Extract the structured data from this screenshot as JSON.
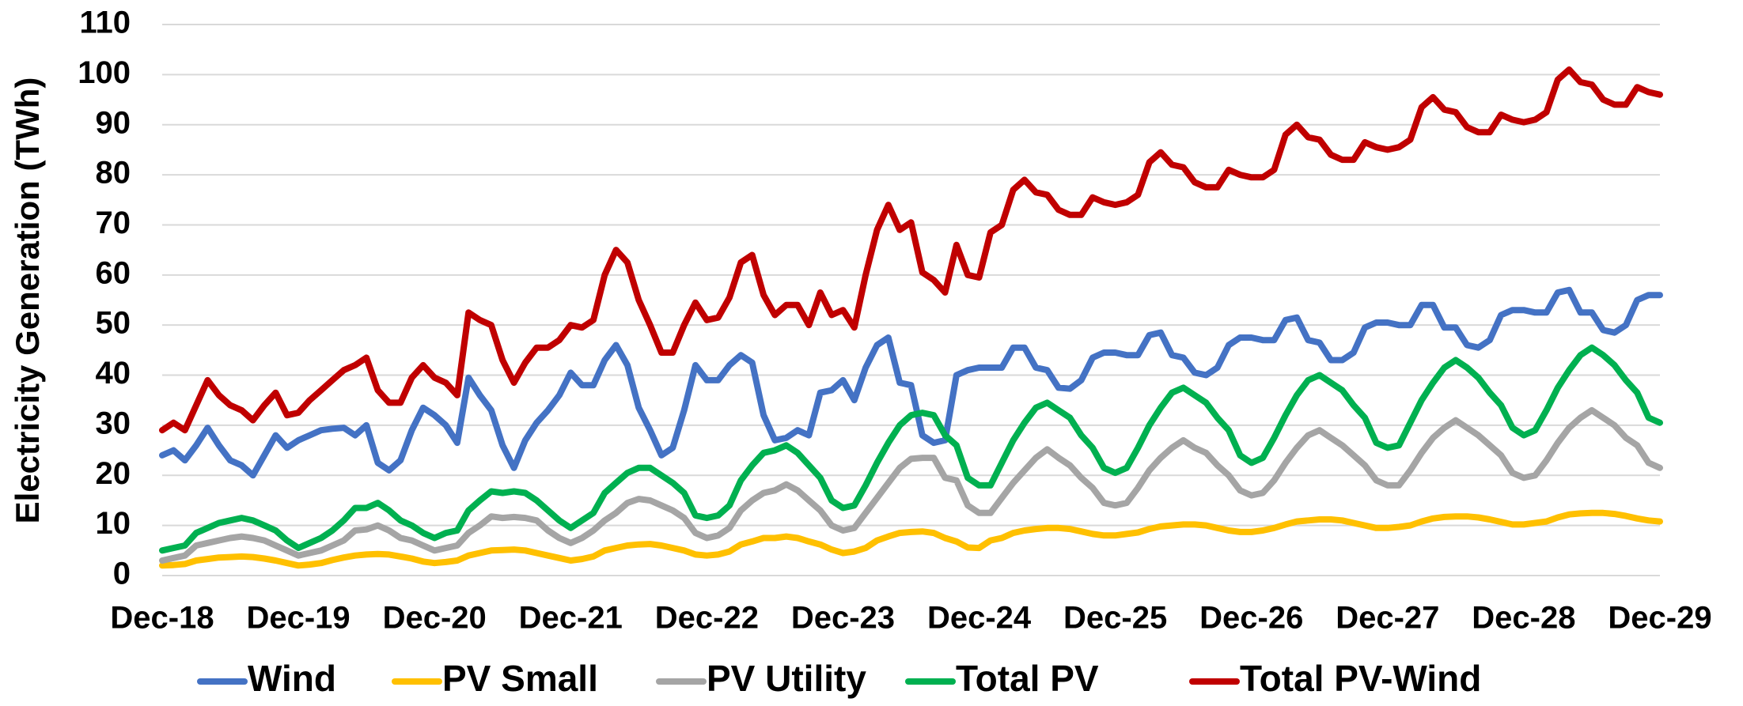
{
  "chart_data": {
    "type": "line",
    "y_label": "Electricity Generation (TWh)",
    "categories": [
      "Dec-18",
      null,
      null,
      null,
      null,
      null,
      null,
      null,
      null,
      null,
      null,
      null,
      "Dec-19",
      null,
      null,
      null,
      null,
      null,
      null,
      null,
      null,
      null,
      null,
      null,
      "Dec-20",
      null,
      null,
      null,
      null,
      null,
      null,
      null,
      null,
      null,
      null,
      null,
      "Dec-21",
      null,
      null,
      null,
      null,
      null,
      null,
      null,
      null,
      null,
      null,
      null,
      "Dec-22",
      null,
      null,
      null,
      null,
      null,
      null,
      null,
      null,
      null,
      null,
      null,
      "Dec-23",
      null,
      null,
      null,
      null,
      null,
      null,
      null,
      null,
      null,
      null,
      null,
      "Dec-24",
      null,
      null,
      null,
      null,
      null,
      null,
      null,
      null,
      null,
      null,
      null,
      "Dec-25",
      null,
      null,
      null,
      null,
      null,
      null,
      null,
      null,
      null,
      null,
      null,
      "Dec-26",
      null,
      null,
      null,
      null,
      null,
      null,
      null,
      null,
      null,
      null,
      null,
      "Dec-27",
      null,
      null,
      null,
      null,
      null,
      null,
      null,
      null,
      null,
      null,
      null,
      "Dec-28",
      null,
      null,
      null,
      null,
      null,
      null,
      null,
      null,
      null,
      null,
      null,
      "Dec-29"
    ],
    "ylim": [
      0,
      110
    ],
    "yticks": [
      0,
      10,
      20,
      30,
      40,
      50,
      60,
      70,
      80,
      90,
      100,
      110
    ],
    "grid": true,
    "legend": "bottom",
    "series": [
      {
        "name": "Wind",
        "color": "#4472c4",
        "values": [
          24,
          25,
          23,
          26,
          29.5,
          26,
          23,
          22,
          20,
          24,
          28,
          25.5,
          27,
          28,
          29,
          29.3,
          29.5,
          28,
          30,
          22.5,
          21,
          23,
          29,
          33.5,
          32,
          30,
          26.5,
          39.5,
          36,
          33,
          26,
          21.5,
          27,
          30.5,
          33,
          36,
          40.5,
          38,
          38,
          43,
          46,
          42,
          33.5,
          29,
          24,
          25.5,
          33,
          42,
          39,
          39,
          42,
          44,
          42.5,
          32,
          27,
          27.5,
          29,
          28,
          36.5,
          37,
          39,
          35,
          41.5,
          46,
          47.5,
          38.5,
          38,
          28,
          26.5,
          27,
          40,
          41,
          41.5,
          41.5,
          41.5,
          45.5,
          45.5,
          41.5,
          41,
          37.5,
          37.3,
          39,
          43.5,
          44.5,
          44.5,
          44,
          44,
          48,
          48.5,
          44,
          43.5,
          40.5,
          40,
          41.5,
          46,
          47.5,
          47.5,
          47,
          47,
          51,
          51.5,
          47,
          46.5,
          43,
          43,
          44.5,
          49.5,
          50.5,
          50.5,
          50,
          50,
          54,
          54,
          49.5,
          49.5,
          46,
          45.5,
          47,
          52,
          53,
          53,
          52.5,
          52.5,
          56.5,
          57,
          52.5,
          52.5,
          49,
          48.5,
          50,
          55,
          56,
          56
        ]
      },
      {
        "name": "PV Small",
        "color": "#ffc000",
        "values": [
          2,
          2.1,
          2.3,
          3,
          3.3,
          3.6,
          3.7,
          3.8,
          3.7,
          3.4,
          3,
          2.5,
          2,
          2.2,
          2.5,
          3.1,
          3.6,
          4,
          4.2,
          4.3,
          4.2,
          3.8,
          3.4,
          2.8,
          2.5,
          2.7,
          3,
          4,
          4.5,
          5,
          5.1,
          5.2,
          5,
          4.5,
          4,
          3.5,
          3,
          3.3,
          3.8,
          5,
          5.5,
          6,
          6.2,
          6.3,
          6,
          5.5,
          5,
          4.2,
          4,
          4.2,
          4.8,
          6.2,
          6.8,
          7.5,
          7.5,
          7.8,
          7.5,
          6.8,
          6.2,
          5.2,
          4.5,
          4.8,
          5.5,
          7,
          7.8,
          8.5,
          8.7,
          8.8,
          8.5,
          7.5,
          6.8,
          5.6,
          5.5,
          7,
          7.5,
          8.5,
          9,
          9.3,
          9.5,
          9.5,
          9.3,
          8.8,
          8.3,
          8,
          8,
          8.3,
          8.6,
          9.3,
          9.8,
          10,
          10.2,
          10.2,
          10,
          9.5,
          9,
          8.7,
          8.7,
          9,
          9.5,
          10.2,
          10.8,
          11,
          11.2,
          11.2,
          11,
          10.5,
          10,
          9.5,
          9.5,
          9.7,
          10,
          10.8,
          11.4,
          11.7,
          11.8,
          11.8,
          11.6,
          11.2,
          10.7,
          10.2,
          10.2,
          10.5,
          10.8,
          11.6,
          12.2,
          12.4,
          12.5,
          12.5,
          12.3,
          11.9,
          11.4,
          11,
          10.8
        ]
      },
      {
        "name": "PV Utility",
        "color": "#a5a5a5",
        "values": [
          3,
          3.5,
          4,
          6,
          6.5,
          7,
          7.5,
          7.8,
          7.5,
          7,
          6,
          5,
          4,
          4.5,
          5,
          6,
          7,
          9,
          9.2,
          10,
          9,
          7.5,
          7,
          6,
          5,
          5.5,
          6,
          8.5,
          10,
          11.8,
          11.5,
          11.7,
          11.5,
          11,
          9,
          7.5,
          6.5,
          7.5,
          9,
          11,
          12.5,
          14.5,
          15.3,
          15,
          14,
          13,
          11.5,
          8.5,
          7.5,
          8,
          9.5,
          13,
          15,
          16.5,
          17,
          18.2,
          17,
          15,
          13,
          10,
          9,
          9.5,
          12.5,
          15.5,
          18.5,
          21.5,
          23.3,
          23.5,
          23.5,
          19.5,
          19,
          14,
          12.5,
          12.5,
          15.5,
          18.5,
          21,
          23.5,
          25.2,
          23.5,
          22,
          19.5,
          17.5,
          14.5,
          14,
          14.5,
          17.5,
          21,
          23.5,
          25.5,
          27,
          25.5,
          24.5,
          22,
          20,
          17,
          16,
          16.5,
          19,
          22.5,
          25.5,
          28,
          29,
          27.5,
          26,
          24,
          22,
          19,
          18,
          18,
          21,
          24.5,
          27.5,
          29.5,
          31,
          29.5,
          28,
          26,
          24,
          20.5,
          19.5,
          20,
          23,
          26.5,
          29.5,
          31.5,
          33,
          31.5,
          30,
          27.5,
          26,
          22.5,
          21.5
        ]
      },
      {
        "name": "Total PV",
        "color": "#00b050",
        "values": [
          5,
          5.5,
          6,
          8.5,
          9.5,
          10.5,
          11,
          11.5,
          11,
          10,
          9,
          7,
          5.5,
          6.5,
          7.5,
          9,
          11,
          13.5,
          13.5,
          14.5,
          13,
          11,
          10,
          8.5,
          7.5,
          8.5,
          9,
          13,
          15,
          16.8,
          16.5,
          16.8,
          16.5,
          15,
          13,
          11,
          9.5,
          11,
          12.5,
          16.5,
          18.5,
          20.5,
          21.5,
          21.5,
          20,
          18.5,
          16.5,
          12,
          11.5,
          12,
          14,
          19,
          22,
          24.5,
          25,
          26,
          24.5,
          22,
          19.5,
          15,
          13.5,
          14,
          18,
          22.5,
          26.5,
          30,
          32,
          32.5,
          32,
          28,
          26,
          19.5,
          18,
          18,
          22.5,
          27,
          30.5,
          33.5,
          34.5,
          33,
          31.5,
          28,
          25.5,
          21.5,
          20.5,
          21.5,
          25.5,
          30,
          33.5,
          36.5,
          37.5,
          36,
          34.5,
          31.5,
          29,
          24,
          22.5,
          23.5,
          27.5,
          32,
          36,
          39,
          40,
          38.5,
          37,
          34,
          31.5,
          26.5,
          25.5,
          26,
          30.5,
          35,
          38.5,
          41.5,
          43,
          41.5,
          39.5,
          36.5,
          34,
          29.5,
          28,
          29,
          33,
          37.5,
          41,
          44,
          45.5,
          44,
          42,
          39,
          36.5,
          31.5,
          30.5
        ]
      },
      {
        "name": "Total PV-Wind",
        "color": "#c00000",
        "values": [
          29,
          30.5,
          29,
          34,
          39,
          36,
          34,
          33,
          31,
          34,
          36.5,
          32,
          32.5,
          35,
          37,
          39,
          41,
          42,
          43.5,
          37,
          34.5,
          34.5,
          39.5,
          42,
          39.5,
          38.5,
          36,
          52.5,
          51,
          50,
          43,
          38.5,
          42.5,
          45.5,
          45.5,
          47,
          50,
          49.5,
          51,
          60,
          65,
          62.5,
          55,
          50,
          44.5,
          44.5,
          50,
          54.5,
          51,
          51.5,
          55.5,
          62.5,
          64,
          56,
          52,
          54,
          54,
          50,
          56.5,
          52,
          53,
          49.5,
          60,
          69,
          74,
          69,
          70.5,
          60.5,
          59,
          56.5,
          66,
          60,
          59.5,
          68.5,
          70,
          77,
          79,
          76.5,
          76,
          73,
          72,
          72,
          75.5,
          74.5,
          74,
          74.5,
          76,
          82.5,
          84.5,
          82,
          81.5,
          78.5,
          77.5,
          77.5,
          81,
          80,
          79.5,
          79.5,
          81,
          88,
          90,
          87.5,
          87,
          84,
          83,
          83,
          86.5,
          85.5,
          85,
          85.5,
          87,
          93.5,
          95.5,
          93,
          92.5,
          89.5,
          88.5,
          88.5,
          92,
          91,
          90.5,
          91,
          92.5,
          99,
          101,
          98.5,
          98,
          95,
          94,
          94,
          97.5,
          96.5,
          96
        ]
      }
    ]
  }
}
